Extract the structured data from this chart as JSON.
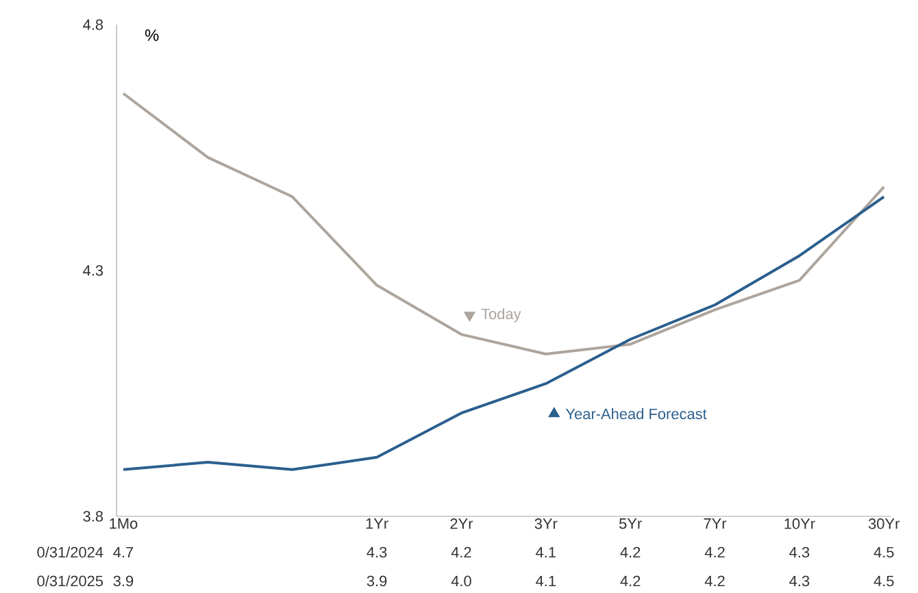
{
  "chart_data": {
    "type": "line",
    "ylabel": "%",
    "categories": [
      "1Mo",
      null,
      null,
      "1Yr",
      "2Yr",
      "3Yr",
      "5Yr",
      "7Yr",
      "10Yr",
      "30Yr"
    ],
    "series": [
      {
        "name": "Today",
        "color": "#ada59d",
        "values": [
          4.66,
          4.53,
          4.45,
          4.27,
          4.17,
          4.13,
          4.15,
          4.22,
          4.28,
          4.47
        ],
        "value_labels": [
          "4.7",
          null,
          null,
          "4.3",
          "4.2",
          "4.1",
          "4.2",
          "4.2",
          "4.3",
          "4.5"
        ]
      },
      {
        "name": "Year-Ahead Forecast",
        "color": "#2b5f8e",
        "values": [
          3.895,
          3.91,
          3.895,
          3.92,
          4.01,
          4.07,
          4.16,
          4.23,
          4.33,
          4.45
        ],
        "value_labels": [
          "3.9",
          null,
          null,
          "3.9",
          "4.0",
          "4.1",
          "4.2",
          "4.2",
          "4.3",
          "4.5"
        ]
      }
    ],
    "annotations": [
      "0/31/2024",
      "0/31/2025"
    ],
    "ylim": [
      3.8,
      4.8
    ],
    "yticks": [
      3.8,
      4.3,
      4.8
    ],
    "grid": false,
    "legend": "center",
    "marker": "none",
    "line_style": "solid"
  }
}
